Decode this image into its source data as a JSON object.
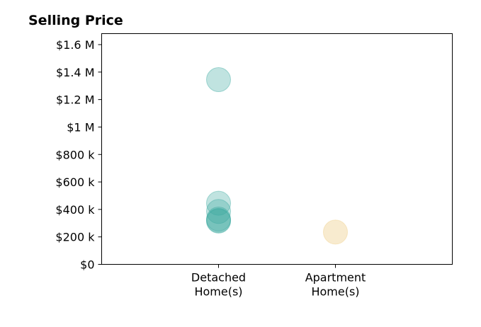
{
  "chart_data": {
    "type": "scatter",
    "title": "Selling Price",
    "xlabel": "",
    "ylabel": "",
    "categories": [
      "Detached\nHome(s)",
      "Apartment\nHome(s)"
    ],
    "xlim": [
      0,
      3
    ],
    "ylim": [
      0,
      1680000
    ],
    "yticks": [
      {
        "value": 0,
        "label": "$0"
      },
      {
        "value": 200000,
        "label": "$200 k"
      },
      {
        "value": 400000,
        "label": "$400 k"
      },
      {
        "value": 600000,
        "label": "$600 k"
      },
      {
        "value": 800000,
        "label": "$800 k"
      },
      {
        "value": 1000000,
        "label": "$1 M"
      },
      {
        "value": 1200000,
        "label": "$1.2 M"
      },
      {
        "value": 1400000,
        "label": "$1.4 M"
      },
      {
        "value": 1600000,
        "label": "$1.6 M"
      }
    ],
    "grid": false,
    "series": [
      {
        "category": "Detached\nHome(s)",
        "color": "#3aa99f",
        "opacity": 0.32,
        "values": [
          1345000,
          445000,
          385000,
          330000,
          320000,
          315000
        ]
      },
      {
        "category": "Apartment\nHome(s)",
        "color": "#f2d8a0",
        "opacity": 0.5,
        "values": [
          235000
        ]
      }
    ]
  }
}
